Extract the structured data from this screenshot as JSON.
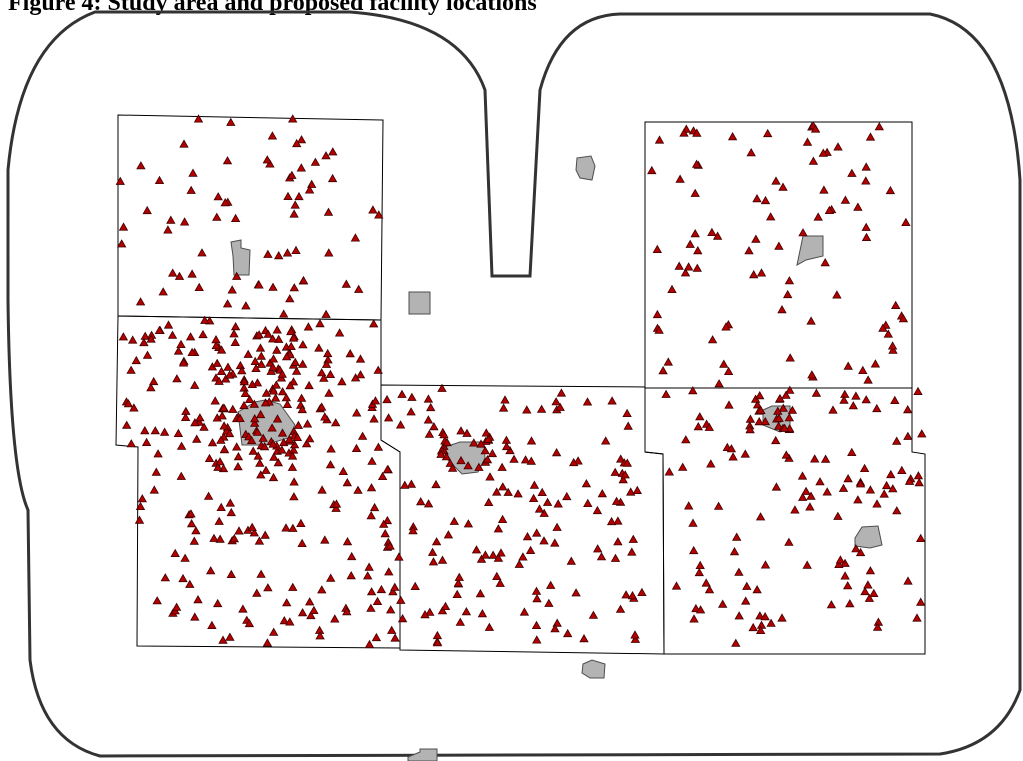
{
  "title": "Figure 4: Study area and proposed facility locations",
  "colors": {
    "background": "#ffffff",
    "buffer_outline": "#333333",
    "county_outline": "#000000",
    "urban_fill": "#b3b3b3",
    "urban_outline": "#4d4d4d",
    "point_fill": "#b30000",
    "point_outline": "#3d0000"
  },
  "legend_present": false,
  "layers": [
    "study-area-buffer",
    "county-boundaries",
    "urban-areas",
    "sample-points"
  ],
  "icons": {
    "point": "triangle-marker-icon",
    "urban": "urban-area-polygon-icon"
  }
}
